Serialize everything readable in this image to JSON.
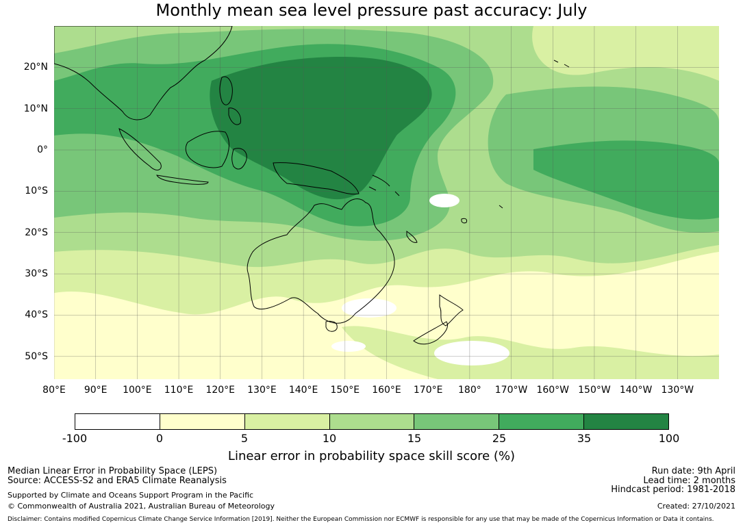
{
  "title": "Monthly mean sea level pressure past accuracy: July",
  "map": {
    "lat_labels": [
      "20°N",
      "10°N",
      "0°",
      "10°S",
      "20°S",
      "30°S",
      "40°S",
      "50°S"
    ],
    "lat_values": [
      20,
      10,
      0,
      -10,
      -20,
      -30,
      -40,
      -50
    ],
    "lon_labels": [
      "80°E",
      "90°E",
      "100°E",
      "110°E",
      "120°E",
      "130°E",
      "140°E",
      "150°E",
      "160°E",
      "170°E",
      "180°",
      "170°W",
      "160°W",
      "150°W",
      "140°W",
      "130°W"
    ],
    "lon_values": [
      80,
      90,
      100,
      110,
      120,
      130,
      140,
      150,
      160,
      170,
      180,
      190,
      200,
      210,
      220,
      230
    ],
    "lon_range": [
      80,
      240
    ],
    "lat_range": [
      -55.5,
      30
    ]
  },
  "legend": {
    "title": "Linear error in probability space skill score (%)",
    "ticks": [
      "-100",
      "0",
      "5",
      "10",
      "15",
      "25",
      "35",
      "100"
    ],
    "colors": [
      "#ffffff",
      "#ffffcc",
      "#d9f0a3",
      "#addd8e",
      "#78c679",
      "#41ab5d",
      "#238443"
    ]
  },
  "footer": {
    "line1": "Median Linear Error in Probability Space (LEPS)",
    "line2": "Source: ACCESS-S2 and ERA5 Climate Reanalysis",
    "line3": "Supported by Climate and Oceans Support Program in the Pacific",
    "line4": "© Commonwealth of Australia 2021, Australian Bureau of Meteorology",
    "run_date": "Run date: 9th April",
    "lead_time": "Lead time: 2 months",
    "hindcast": "Hindcast period: 1981-2018",
    "created": "Created: 27/10/2021",
    "disclaimer": "Disclaimer: Contains modified Copernicus Climate Change Service Information [2019]. Neither the European Commission nor ECMWF is responsible for any use that may be made of the Copernicus Information or Data it contains."
  }
}
